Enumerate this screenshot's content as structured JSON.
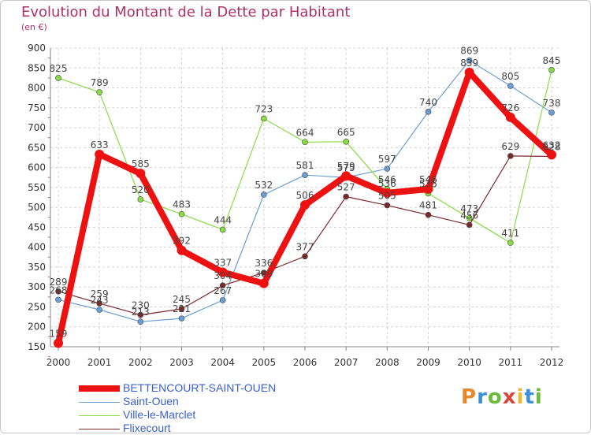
{
  "title": "Evolution du Montant de la Dette par Habitant",
  "unit": "(en €)",
  "logo_text": "Proxiti",
  "chart_data": {
    "type": "line",
    "x": [
      "2000",
      "2001",
      "2002",
      "2003",
      "2004",
      "2005",
      "2006",
      "2007",
      "2008",
      "2009",
      "2010",
      "2011",
      "2012"
    ],
    "ylim": [
      150,
      900
    ],
    "yticks": [
      150,
      200,
      250,
      300,
      350,
      400,
      450,
      500,
      550,
      600,
      650,
      700,
      750,
      800,
      850,
      900
    ],
    "grid": true,
    "legend_position": "bottom-left",
    "series": [
      {
        "name": "BETTENCOURT-SAINT-OUEN",
        "color": "#ee1111",
        "width": 8,
        "values": [
          159,
          633,
          585,
          392,
          337,
          309,
          506,
          579,
          536,
          546,
          839,
          726,
          632
        ],
        "labels": [
          "159",
          "633",
          "585",
          "392",
          "337",
          "309",
          "506",
          "579",
          "536",
          "546",
          "839",
          "726",
          "632"
        ]
      },
      {
        "name": "Saint-Ouen",
        "color": "#6a9fd4",
        "width": 1.2,
        "values": [
          268,
          243,
          213,
          221,
          267,
          532,
          581,
          575,
          597,
          740,
          869,
          805,
          738
        ],
        "labels": [
          "268",
          "243",
          "213",
          "221",
          "267",
          "532",
          "581",
          "575",
          "597",
          "740",
          "869",
          "805",
          "738"
        ]
      },
      {
        "name": "Ville-le-Marclet",
        "color": "#88dd44",
        "width": 1.2,
        "values": [
          825,
          789,
          520,
          483,
          444,
          723,
          664,
          665,
          546,
          535,
          473,
          411,
          845
        ],
        "labels": [
          "825",
          "789",
          "520",
          "483",
          "444",
          "723",
          "664",
          "665",
          "546",
          "535",
          "473",
          "411",
          "845"
        ]
      },
      {
        "name": "Flixecourt",
        "color": "#7a2a2a",
        "width": 1.2,
        "values": [
          289,
          259,
          230,
          245,
          304,
          336,
          377,
          527,
          505,
          481,
          456,
          629,
          628
        ],
        "labels": [
          "289",
          "259",
          "230",
          "245",
          "304",
          "336",
          "377",
          "527",
          "505",
          "481",
          "456",
          "629",
          "628"
        ]
      }
    ]
  }
}
